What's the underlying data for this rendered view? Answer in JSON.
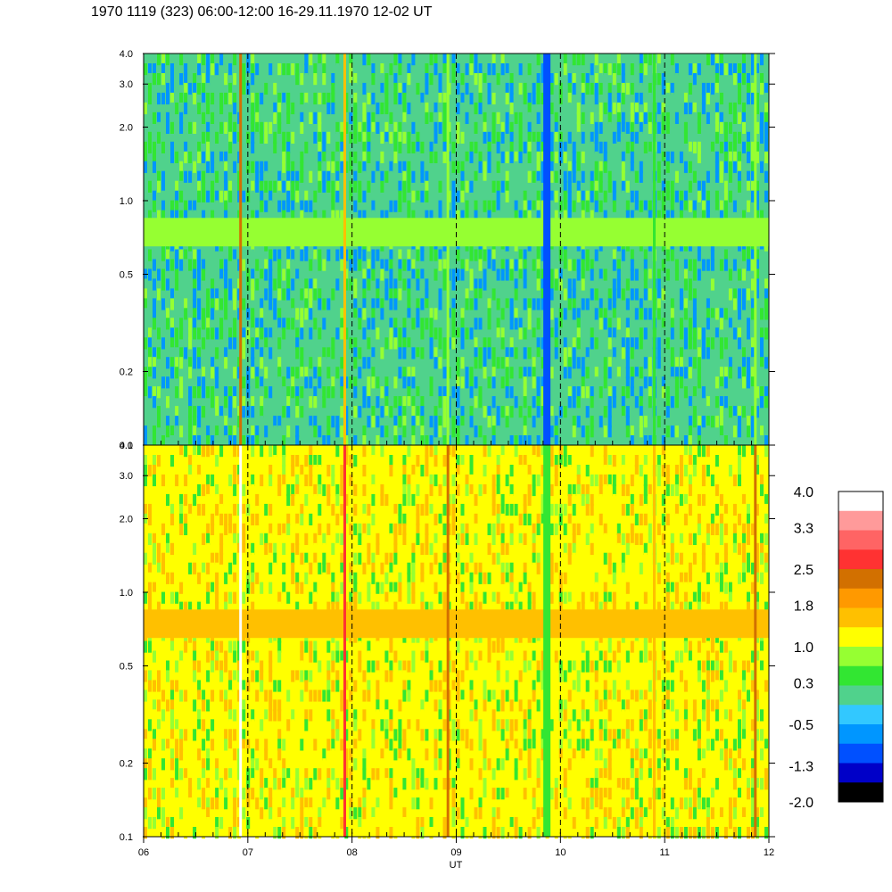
{
  "title": "1970 1119 (323) 06:00-12:00 16-29.11.1970  12-02 UT",
  "chart_data": {
    "type": "heatmap",
    "panels": [
      {
        "name": "",
        "y_scale": "log",
        "ylim": [
          0.1,
          4.0
        ],
        "yticks": [
          0.1,
          0.2,
          0.5,
          1.0,
          2.0,
          3.0,
          4.0
        ],
        "ytick_labels": [
          "0.1",
          "0.2",
          "0.5",
          "1.0",
          "2.0",
          "3.0",
          "4.0"
        ],
        "band": [
          0.65,
          0.85
        ],
        "base_level": 0.2,
        "band_level": 1.0,
        "noise_levels": [
          -0.8,
          -0.5,
          0.2,
          0.3,
          0.6,
          0.7
        ]
      },
      {
        "name": "",
        "y_scale": "log",
        "ylim": [
          0.1,
          4.0
        ],
        "yticks": [
          0.1,
          0.2,
          0.5,
          1.0,
          2.0,
          3.0,
          4.0
        ],
        "ytick_labels": [
          "0.1",
          "0.2",
          "0.5",
          "1.0",
          "2.0",
          "3.0",
          "4.0"
        ],
        "band": [
          0.65,
          0.85
        ],
        "base_level": 1.2,
        "band_level": 1.7,
        "noise_levels": [
          0.6,
          0.9,
          1.1,
          1.3,
          1.5,
          1.6
        ]
      }
    ],
    "x_ticks": [
      "06",
      "07",
      "08",
      "09",
      "10",
      "11",
      "12"
    ],
    "x_range_hours": [
      6,
      12
    ],
    "xlabel": "UT",
    "dashed_lines_at_hours": [
      7,
      8,
      9,
      10,
      11
    ],
    "spikes_at_hours": [
      [
        6.93,
        6.0
      ],
      [
        7.93,
        5.0
      ],
      [
        8.92,
        4.5
      ],
      [
        9.87,
        2.6
      ],
      [
        10.9,
        4.0
      ],
      [
        11.87,
        4.5
      ]
    ],
    "colorbar": {
      "labels": [
        "4.0",
        "3.3",
        "2.5",
        "1.8",
        "1.0",
        "0.3",
        "-0.5",
        "-1.3",
        "-2.0"
      ],
      "colors_top_to_bottom": [
        "#ffffff",
        "#ff9a9a",
        "#ff6464",
        "#ff3232",
        "#d27000",
        "#ff9900",
        "#ffc000",
        "#ffff00",
        "#96ff32",
        "#32e632",
        "#50d28c",
        "#32c8ff",
        "#0096ff",
        "#0050ff",
        "#0000c8",
        "#000000"
      ],
      "range": [
        -2.0,
        4.0
      ]
    }
  }
}
